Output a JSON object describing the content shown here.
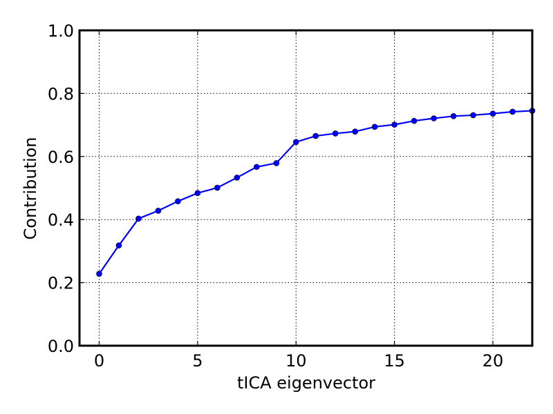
{
  "chart_data": {
    "type": "line",
    "title": "",
    "xlabel": "tICA eigenvector",
    "ylabel": "Contribution",
    "xlim": [
      -1,
      22
    ],
    "ylim": [
      0.0,
      1.0
    ],
    "xticks": [
      0,
      5,
      10,
      15,
      20
    ],
    "yticks": [
      0.0,
      0.2,
      0.4,
      0.6,
      0.8,
      1.0
    ],
    "xtick_labels": [
      "0",
      "5",
      "10",
      "15",
      "20"
    ],
    "ytick_labels": [
      "0.0",
      "0.2",
      "0.4",
      "0.6",
      "0.8",
      "1.0"
    ],
    "grid": true,
    "series": [
      {
        "color": "#0000ff",
        "marker": "circle",
        "x": [
          0,
          1,
          2,
          3,
          4,
          5,
          6,
          7,
          8,
          9,
          10,
          11,
          12,
          13,
          14,
          15,
          16,
          17,
          18,
          19,
          20,
          21,
          22
        ],
        "y": [
          0.228,
          0.318,
          0.403,
          0.428,
          0.458,
          0.484,
          0.501,
          0.533,
          0.567,
          0.579,
          0.646,
          0.665,
          0.673,
          0.679,
          0.694,
          0.701,
          0.713,
          0.721,
          0.728,
          0.731,
          0.736,
          0.742,
          0.745
        ]
      }
    ]
  }
}
